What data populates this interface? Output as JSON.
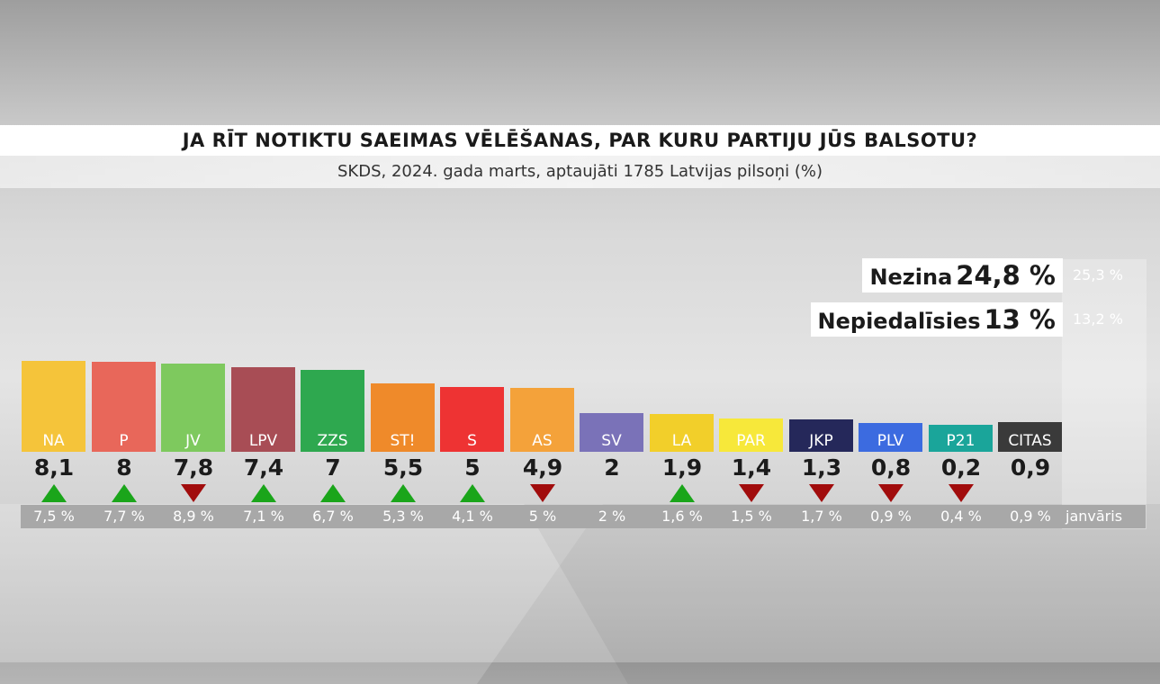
{
  "chart_data": {
    "type": "bar",
    "title": "JA RĪT NOTIKTU SAEIMAS VĒLĒŠANAS, PAR KURU PARTIJU JŪS BALSOTU?",
    "subtitle": "SKDS, 2024. gada marts, aptaujāti 1785 Latvijas pilsoņi (%)",
    "ylim": [
      0,
      10
    ],
    "previous_label": "janvāris",
    "parties": [
      {
        "label": "NA",
        "value": 8.1,
        "value_text": "8,1",
        "previous": "7,5 %",
        "trend": "up",
        "color": "#f5c43a",
        "label_bg": "#f5c43a"
      },
      {
        "label": "P",
        "value": 8,
        "value_text": "8",
        "previous": "7,7 %",
        "trend": "up",
        "color": "#e8675a",
        "label_bg": "#e8675a"
      },
      {
        "label": "JV",
        "value": 7.8,
        "value_text": "7,8",
        "previous": "8,9 %",
        "trend": "down",
        "color": "#7ec95e",
        "label_bg": "#7ec95e"
      },
      {
        "label": "LPV",
        "value": 7.4,
        "value_text": "7,4",
        "previous": "7,1 %",
        "trend": "up",
        "color": "#a84d55",
        "label_bg": "#a84d55"
      },
      {
        "label": "ZZS",
        "value": 7,
        "value_text": "7",
        "previous": "6,7 %",
        "trend": "up",
        "color": "#2ea84f",
        "label_bg": "#2ea84f"
      },
      {
        "label": "ST!",
        "value": 5.5,
        "value_text": "5,5",
        "previous": "5,3 %",
        "trend": "up",
        "color": "#ef8a2a",
        "label_bg": "#ef8a2a"
      },
      {
        "label": "S",
        "value": 5,
        "value_text": "5",
        "previous": "4,1 %",
        "trend": "up",
        "color": "#ee3333",
        "label_bg": "#ee3333"
      },
      {
        "label": "AS",
        "value": 4.9,
        "value_text": "4,9",
        "previous": "5 %",
        "trend": "down",
        "color": "#f4a23a",
        "label_bg": "#f4a23a"
      },
      {
        "label": "SV",
        "value": 2,
        "value_text": "2",
        "previous": "2 %",
        "trend": "none",
        "color": "#7a72b8",
        "label_bg": "#7a72b8"
      },
      {
        "label": "LA",
        "value": 1.9,
        "value_text": "1,9",
        "previous": "1,6 %",
        "trend": "up",
        "color": "#f2cf2a",
        "label_bg": "#f2cf2a"
      },
      {
        "label": "PAR",
        "value": 1.4,
        "value_text": "1,4",
        "previous": "1,5 %",
        "trend": "down",
        "color": "#f7e83a",
        "label_bg": "#f7e83a"
      },
      {
        "label": "JKP",
        "value": 1.3,
        "value_text": "1,3",
        "previous": "1,7 %",
        "trend": "down",
        "color": "#25285a",
        "label_bg": "#25285a"
      },
      {
        "label": "PLV",
        "value": 0.8,
        "value_text": "0,8",
        "previous": "0,9 %",
        "trend": "down",
        "color": "#3c6be0",
        "label_bg": "#3c6be0"
      },
      {
        "label": "P21",
        "value": 0.2,
        "value_text": "0,2",
        "previous": "0,4 %",
        "trend": "down",
        "color": "#1aa59a",
        "label_bg": "#1aa59a"
      },
      {
        "label": "CITAS",
        "value": 0.9,
        "value_text": "0,9",
        "previous": "0,9 %",
        "trend": "none",
        "color": "#3a3a3a",
        "label_bg": "#3a3a3a"
      }
    ],
    "extra": [
      {
        "label": "Nezina",
        "value": 24.8,
        "value_text": "24,8 %",
        "previous": "25,3 %"
      },
      {
        "label": "Nepiedalīsies",
        "value": 13,
        "value_text": "13 %",
        "previous": "13,2 %"
      }
    ],
    "colors": {
      "up": "#1aa51a",
      "down": "#a10c0c"
    }
  }
}
